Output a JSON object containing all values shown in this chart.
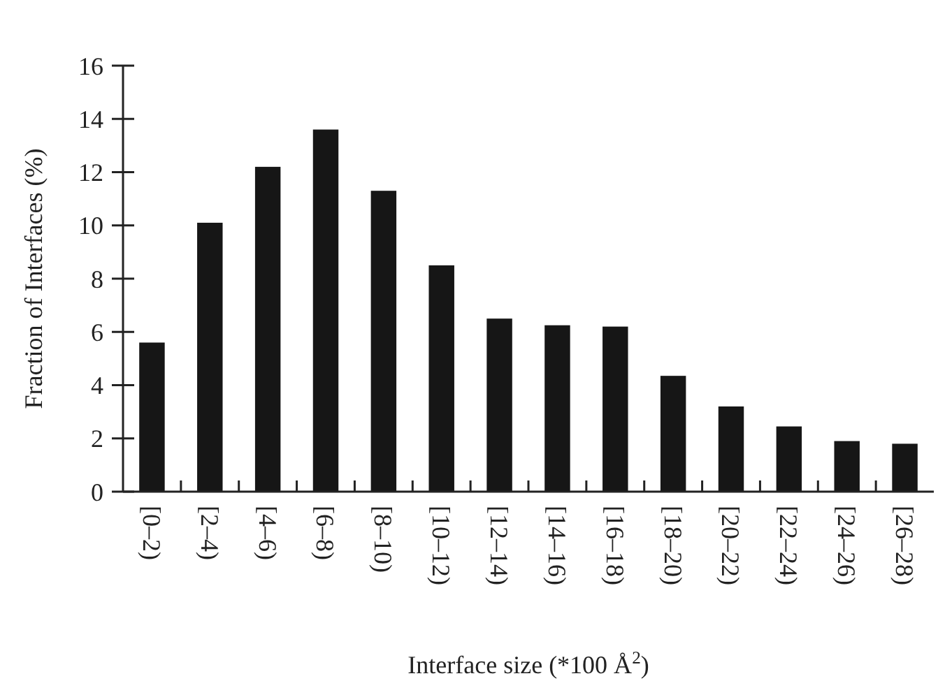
{
  "chart_data": {
    "type": "bar",
    "xlabel": "Interface size (*100 Å$^{2}$)",
    "ylabel": "Fraction of Interfaces (%)",
    "categories": [
      "[0–2)",
      "[2–4)",
      "[4–6)",
      "[6–8)",
      "[8–10)",
      "[10–12)",
      "[12–14)",
      "[14–16)",
      "[16–18)",
      "[18–20)",
      "[20–22)",
      "[22–24)",
      "[24–26)",
      "[26–28)"
    ],
    "values": [
      5.6,
      10.1,
      12.2,
      13.6,
      11.3,
      8.5,
      6.5,
      6.25,
      6.2,
      4.35,
      3.2,
      2.45,
      1.9,
      1.8
    ],
    "color": "#161616",
    "ylim": [
      0,
      16
    ],
    "yticks": [
      0,
      2,
      4,
      6,
      8,
      10,
      12,
      14,
      16
    ],
    "grid": false
  }
}
